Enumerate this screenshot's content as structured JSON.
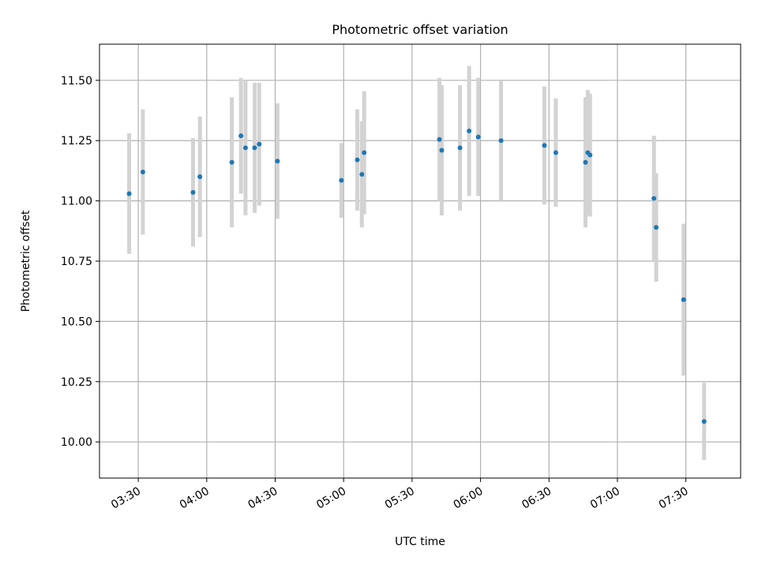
{
  "chart_data": {
    "type": "scatter",
    "title": "Photometric offset variation",
    "xlabel": "UTC time",
    "ylabel": "Photometric offset",
    "x_axis_type": "time",
    "xlim": [
      "03:13",
      "07:54"
    ],
    "ylim": [
      9.85,
      11.65
    ],
    "xticks": [
      "03:30",
      "04:00",
      "04:30",
      "05:00",
      "05:30",
      "06:00",
      "06:30",
      "07:00",
      "07:30"
    ],
    "yticks": [
      "10.00",
      "10.25",
      "10.50",
      "10.75",
      "11.00",
      "11.25",
      "11.50"
    ],
    "grid": true,
    "legend": "none",
    "point_color": "#1f77b4",
    "errorbar_color": "#d3d3d3",
    "points": [
      {
        "t": "03:26",
        "y": 11.03,
        "err": 0.25
      },
      {
        "t": "03:32",
        "y": 11.12,
        "err": 0.26
      },
      {
        "t": "03:54",
        "y": 11.035,
        "err": 0.225
      },
      {
        "t": "03:57",
        "y": 11.1,
        "err": 0.25
      },
      {
        "t": "04:11",
        "y": 11.16,
        "err": 0.27
      },
      {
        "t": "04:15",
        "y": 11.27,
        "err": 0.24
      },
      {
        "t": "04:17",
        "y": 11.22,
        "err": 0.28
      },
      {
        "t": "04:21",
        "y": 11.22,
        "err": 0.27
      },
      {
        "t": "04:23",
        "y": 11.235,
        "err": 0.255
      },
      {
        "t": "04:31",
        "y": 11.165,
        "err": 0.24
      },
      {
        "t": "04:59",
        "y": 11.085,
        "err": 0.155
      },
      {
        "t": "05:06",
        "y": 11.17,
        "err": 0.21
      },
      {
        "t": "05:08",
        "y": 11.11,
        "err": 0.22
      },
      {
        "t": "05:09",
        "y": 11.2,
        "err": 0.255
      },
      {
        "t": "05:42",
        "y": 11.255,
        "err": 0.255
      },
      {
        "t": "05:43",
        "y": 11.21,
        "err": 0.27
      },
      {
        "t": "05:51",
        "y": 11.22,
        "err": 0.26
      },
      {
        "t": "05:55",
        "y": 11.29,
        "err": 0.27
      },
      {
        "t": "05:59",
        "y": 11.265,
        "err": 0.245
      },
      {
        "t": "06:09",
        "y": 11.25,
        "err": 0.25
      },
      {
        "t": "06:28",
        "y": 11.23,
        "err": 0.245
      },
      {
        "t": "06:33",
        "y": 11.2,
        "err": 0.225
      },
      {
        "t": "06:46",
        "y": 11.16,
        "err": 0.27
      },
      {
        "t": "06:47",
        "y": 11.2,
        "err": 0.26
      },
      {
        "t": "06:48",
        "y": 11.19,
        "err": 0.255
      },
      {
        "t": "07:16",
        "y": 11.01,
        "err": 0.26
      },
      {
        "t": "07:17",
        "y": 10.89,
        "err": 0.225
      },
      {
        "t": "07:29",
        "y": 10.59,
        "err": 0.315
      },
      {
        "t": "07:38",
        "y": 10.085,
        "err": 0.16
      }
    ]
  }
}
